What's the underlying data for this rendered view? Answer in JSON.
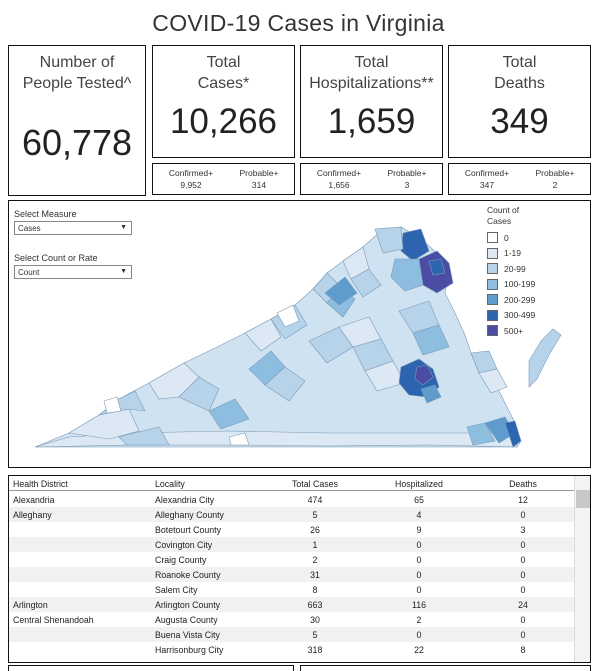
{
  "title": "COVID-19 Cases in Virginia",
  "cards": {
    "tested": {
      "label": "Number of People Tested^",
      "value": "60,778"
    },
    "cases": {
      "label_1": "Total",
      "label_2": "Cases*",
      "value": "10,266",
      "sub": {
        "a_label": "Confirmed+",
        "a_value": "9,952",
        "b_label": "Probable+",
        "b_value": "314"
      }
    },
    "hosp": {
      "label_1": "Total",
      "label_2": "Hospitalizations**",
      "value": "1,659",
      "sub": {
        "a_label": "Confirmed+",
        "a_value": "1,656",
        "b_label": "Probable+",
        "b_value": "3"
      }
    },
    "deaths": {
      "label_1": "Total",
      "label_2": "Deaths",
      "value": "349",
      "sub": {
        "a_label": "Confirmed+",
        "a_value": "347",
        "b_label": "Probable+",
        "b_value": "2"
      }
    }
  },
  "controls": {
    "measure_label": "Select Measure",
    "measure_value": "Cases",
    "count_label": "Select Count or Rate",
    "count_value": "Count"
  },
  "legend": {
    "title_1": "Count of",
    "title_2": "Cases",
    "items": [
      {
        "label": "0",
        "color": "#ffffff"
      },
      {
        "label": "1-19",
        "color": "#dce9f4"
      },
      {
        "label": "20-99",
        "color": "#b7d3e9"
      },
      {
        "label": "100-199",
        "color": "#8dbedf"
      },
      {
        "label": "200-299",
        "color": "#5d9ccc"
      },
      {
        "label": "300-499",
        "color": "#2d64b0"
      },
      {
        "label": "500+",
        "color": "#4a4da3"
      }
    ]
  },
  "table": {
    "headers": [
      "Health District",
      "Locality",
      "Total Cases",
      "Hospitalized",
      "Deaths"
    ],
    "rows": [
      [
        "Alexandria",
        "Alexandria City",
        "474",
        "65",
        "12"
      ],
      [
        "Alleghany",
        "Alleghany County",
        "5",
        "4",
        "0"
      ],
      [
        "",
        "Botetourt County",
        "26",
        "9",
        "3"
      ],
      [
        "",
        "Covington City",
        "1",
        "0",
        "0"
      ],
      [
        "",
        "Craig County",
        "2",
        "0",
        "0"
      ],
      [
        "",
        "Roanoke County",
        "31",
        "0",
        "0"
      ],
      [
        "",
        "Salem City",
        "8",
        "0",
        "0"
      ],
      [
        "Arlington",
        "Arlington County",
        "663",
        "116",
        "24"
      ],
      [
        "Central Shenandoah",
        "Augusta County",
        "30",
        "2",
        "0"
      ],
      [
        "",
        "Buena Vista City",
        "5",
        "0",
        "0"
      ],
      [
        "",
        "Harrisonburg City",
        "318",
        "22",
        "8"
      ]
    ]
  }
}
